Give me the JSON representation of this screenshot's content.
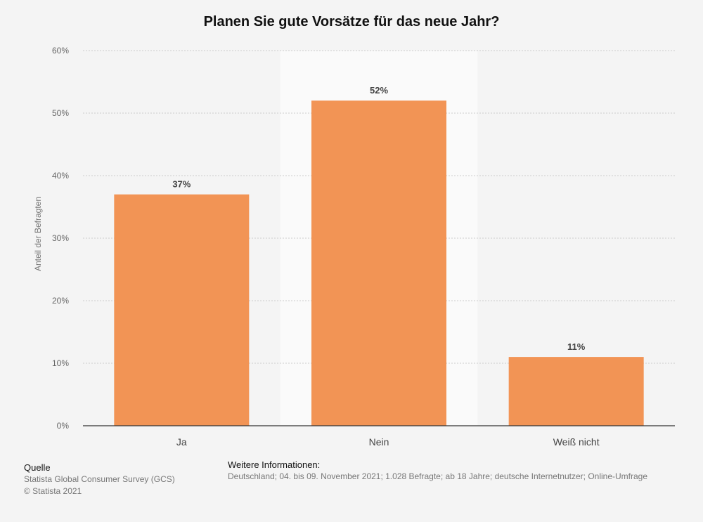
{
  "chart_data": {
    "type": "bar",
    "title": "Planen Sie gute Vorsätze für das neue Jahr?",
    "categories": [
      "Ja",
      "Nein",
      "Weiß nicht"
    ],
    "values": [
      37,
      52,
      11
    ],
    "value_labels": [
      "37%",
      "52%",
      "11%"
    ],
    "ylabel": "Anteil der Befragten",
    "ylim": [
      0,
      60
    ],
    "yticks": [
      0,
      10,
      20,
      30,
      40,
      50,
      60
    ],
    "ytick_labels": [
      "0%",
      "10%",
      "20%",
      "30%",
      "40%",
      "50%",
      "60%"
    ],
    "highlighted_category": "Nein",
    "grid": true,
    "colors": {
      "bar": "#f29455",
      "highlight_band": "#fafafa",
      "grid": "#cccccc",
      "axis": "#333333"
    }
  },
  "footer": {
    "source_heading": "Quelle",
    "source_lines": [
      "Statista Global Consumer Survey (GCS)",
      "© Statista 2021"
    ],
    "info_heading": "Weitere Informationen:",
    "info_text": "Deutschland; 04. bis 09. November 2021; 1.028 Befragte; ab 18 Jahre; deutsche Internetnutzer; Online-Umfrage"
  }
}
